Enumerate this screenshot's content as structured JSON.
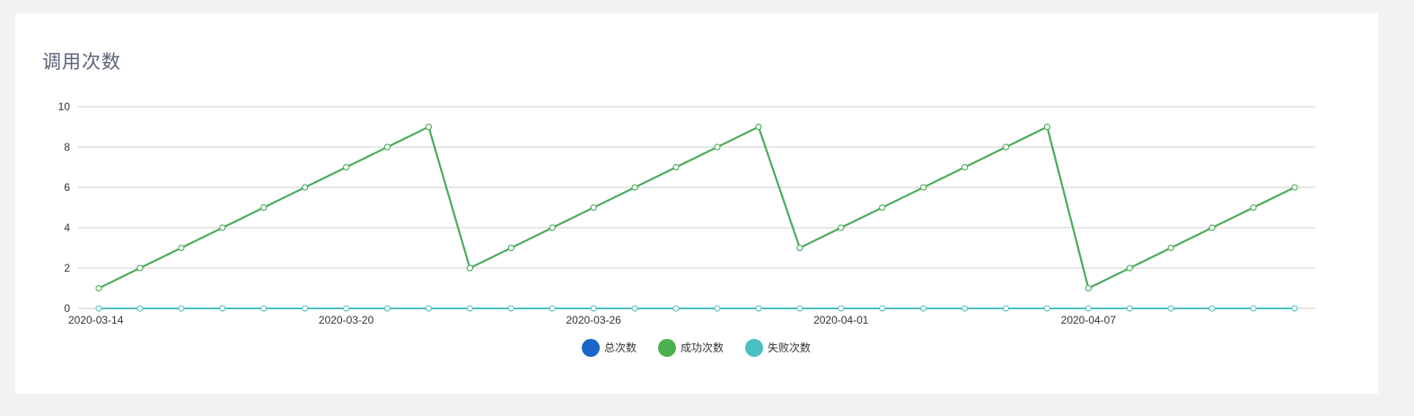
{
  "card": {
    "title": "调用次数"
  },
  "colors": {
    "background": "#f2f2f2",
    "card": "#ffffff",
    "grid": "#cccccc",
    "total": "#1a66c9",
    "success": "#4caf50",
    "fail": "#4bc0c0"
  },
  "chart_data": {
    "type": "line",
    "title": "调用次数",
    "x": [
      "2020-03-14",
      "2020-03-15",
      "2020-03-16",
      "2020-03-17",
      "2020-03-18",
      "2020-03-19",
      "2020-03-20",
      "2020-03-21",
      "2020-03-22",
      "2020-03-23",
      "2020-03-24",
      "2020-03-25",
      "2020-03-26",
      "2020-03-27",
      "2020-03-28",
      "2020-03-29",
      "2020-03-30",
      "2020-03-31",
      "2020-04-01",
      "2020-04-02",
      "2020-04-03",
      "2020-04-04",
      "2020-04-05",
      "2020-04-06",
      "2020-04-07",
      "2020-04-08",
      "2020-04-09",
      "2020-04-10",
      "2020-04-11",
      "2020-04-12"
    ],
    "x_tick_labels": [
      "2020-03-14",
      "2020-03-20",
      "2020-03-26",
      "2020-04-01",
      "2020-04-07"
    ],
    "y_ticks": [
      "0",
      "2",
      "4",
      "6",
      "8",
      "10"
    ],
    "ylim": [
      0,
      10
    ],
    "grid": true,
    "legend_position": "bottom-center",
    "series": [
      {
        "name": "总次数",
        "color": "#1a66c9",
        "values": [
          1,
          2,
          3,
          4,
          5,
          6,
          7,
          8,
          9,
          2,
          3,
          4,
          5,
          6,
          7,
          8,
          9,
          3,
          4,
          5,
          6,
          7,
          8,
          9,
          1,
          2,
          3,
          4,
          5,
          6
        ]
      },
      {
        "name": "成功次数",
        "color": "#4caf50",
        "values": [
          1,
          2,
          3,
          4,
          5,
          6,
          7,
          8,
          9,
          2,
          3,
          4,
          5,
          6,
          7,
          8,
          9,
          3,
          4,
          5,
          6,
          7,
          8,
          9,
          1,
          2,
          3,
          4,
          5,
          6
        ]
      },
      {
        "name": "失败次数",
        "color": "#4bc0c0",
        "values": [
          0,
          0,
          0,
          0,
          0,
          0,
          0,
          0,
          0,
          0,
          0,
          0,
          0,
          0,
          0,
          0,
          0,
          0,
          0,
          0,
          0,
          0,
          0,
          0,
          0,
          0,
          0,
          0,
          0,
          0
        ]
      }
    ]
  }
}
